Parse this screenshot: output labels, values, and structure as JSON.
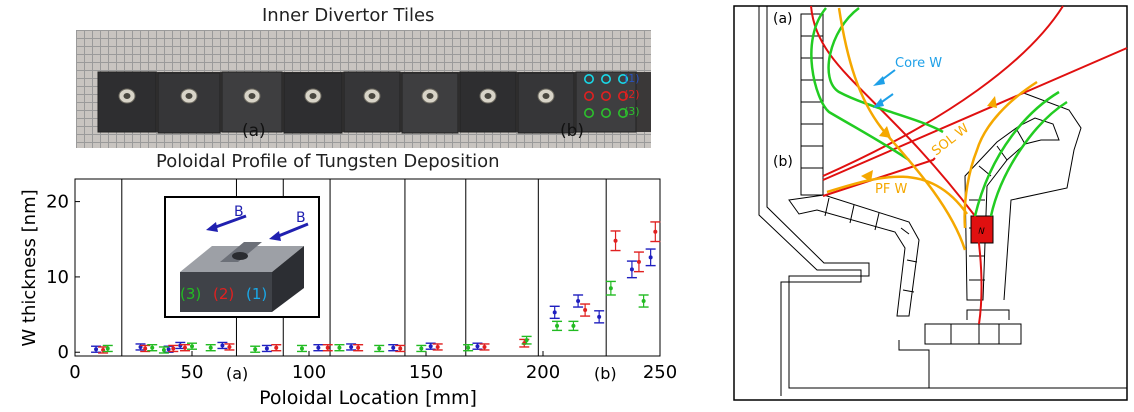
{
  "photo": {
    "title": "Inner Divertor Tiles",
    "label_a": "(a)",
    "label_b": "(b)",
    "row_labels": [
      "(1)",
      "(2)",
      "(3)"
    ],
    "row_colors": [
      "#2a52be",
      "#e02020",
      "#2cc02c"
    ],
    "circle_colors": [
      "#19d8e8",
      "#e02020",
      "#2cc02c"
    ]
  },
  "chart_data": {
    "type": "scatter",
    "title": "Poloidal Profile of Tungsten Deposition",
    "xlabel": "Poloidal Location [mm]",
    "ylabel": "W thickness [nm]",
    "xlim": [
      0,
      250
    ],
    "ylim": [
      -0.5,
      23
    ],
    "xticks": [
      0,
      50,
      100,
      150,
      200,
      250
    ],
    "yticks": [
      0,
      10,
      20
    ],
    "tile_boundaries": [
      20,
      69,
      89,
      109,
      141,
      167,
      198,
      227
    ],
    "series": [
      {
        "name": "(1)",
        "color": "#1f1fbf",
        "x": [
          9,
          28,
          40,
          45,
          63,
          82,
          104,
          118,
          136,
          152,
          172,
          205,
          215,
          224,
          238,
          246
        ],
        "y": [
          0.4,
          0.7,
          0.4,
          0.9,
          0.9,
          0.5,
          0.6,
          0.7,
          0.6,
          0.8,
          0.8,
          5.3,
          6.8,
          4.7,
          11.0,
          12.6
        ],
        "err": [
          0.3,
          0.3,
          0.3,
          0.3,
          0.3,
          0.3,
          0.3,
          0.3,
          0.3,
          0.3,
          0.3,
          0.8,
          0.8,
          0.8,
          1.1,
          1.1
        ]
      },
      {
        "name": "(2)",
        "color": "#e02020",
        "x": [
          12,
          30,
          42,
          47,
          66,
          86,
          108,
          121,
          139,
          155,
          175,
          192,
          218,
          231,
          241,
          248
        ],
        "y": [
          0.3,
          0.5,
          0.5,
          0.6,
          0.7,
          0.6,
          0.6,
          0.6,
          0.5,
          0.7,
          0.7,
          1.2,
          5.6,
          14.8,
          12.0,
          16.0
        ],
        "err": [
          0.3,
          0.3,
          0.3,
          0.3,
          0.3,
          0.3,
          0.3,
          0.3,
          0.3,
          0.3,
          0.3,
          0.5,
          0.8,
          1.3,
          1.3,
          1.3
        ]
      },
      {
        "name": "(3)",
        "color": "#22bb22",
        "x": [
          14,
          33,
          38,
          50,
          58,
          77,
          97,
          113,
          130,
          148,
          168,
          193,
          206,
          213,
          229,
          243
        ],
        "y": [
          0.5,
          0.6,
          0.3,
          0.8,
          0.6,
          0.4,
          0.5,
          0.6,
          0.5,
          0.5,
          0.6,
          1.6,
          3.5,
          3.5,
          8.5,
          6.8
        ],
        "err": [
          0.3,
          0.3,
          0.3,
          0.3,
          0.3,
          0.3,
          0.3,
          0.3,
          0.3,
          0.3,
          0.3,
          0.5,
          0.6,
          0.6,
          0.9,
          0.8
        ]
      }
    ],
    "annotations": {
      "label_a": "(a)",
      "label_b": "(b)"
    },
    "inset": {
      "B_labels": [
        "B",
        "B"
      ],
      "labels": [
        "(3)",
        "(2)",
        "(1)"
      ],
      "label_colors": [
        "#22bb22",
        "#e02020",
        "#19a8e8"
      ]
    }
  },
  "diagram": {
    "labels": {
      "a": "(a)",
      "b": "(b)",
      "core": "Core W",
      "sol": "SOL W",
      "pf": "PF W",
      "tile": "W"
    },
    "colors": {
      "separatrix": "#e01010",
      "core": "#22cc22",
      "sol": "#f5a800",
      "core_arrow": "#1ea0e8",
      "tile": "#e01010"
    }
  }
}
